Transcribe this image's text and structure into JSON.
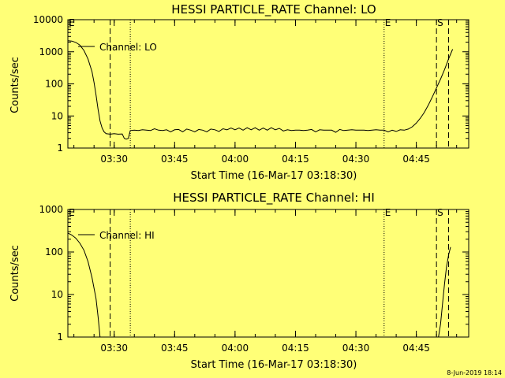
{
  "footer": {
    "timestamp": "8-Jun-2019 18:14"
  },
  "chart_data": [
    {
      "type": "line",
      "title": "HESSI PARTICLE_RATE Channel: LO",
      "xlabel": "Start Time (16-Mar-17 03:18:30)",
      "ylabel": "Counts/sec",
      "y_scale": "log",
      "xlim": [
        "03:18:30",
        "04:58:00"
      ],
      "ylim": [
        1,
        10000
      ],
      "x_ticks": [
        "03:30",
        "03:45",
        "04:00",
        "04:15",
        "04:30",
        "04:45"
      ],
      "y_ticks": [
        "1",
        "10",
        "100",
        "1000",
        "10000"
      ],
      "legend": {
        "label": "Channel: LO",
        "placement": "top-left"
      },
      "markers": [
        {
          "time": "03:18:30",
          "label": "E",
          "style": "dotted"
        },
        {
          "time": "03:29:00",
          "label": "",
          "style": "dashed"
        },
        {
          "time": "03:34:00",
          "label": "",
          "style": "dotted"
        },
        {
          "time": "04:37:00",
          "label": "E",
          "style": "dotted"
        },
        {
          "time": "04:50:00",
          "label": "S",
          "style": "dashed"
        },
        {
          "time": "04:53:00",
          "label": "",
          "style": "dashed"
        }
      ],
      "series": [
        {
          "name": "Channel: LO",
          "points": [
            [
              "03:18:30",
              2200
            ],
            [
              "03:19:30",
              2150
            ],
            [
              "03:20:30",
              1950
            ],
            [
              "03:21:30",
              1600
            ],
            [
              "03:22:30",
              1100
            ],
            [
              "03:23:30",
              600
            ],
            [
              "03:24:30",
              240
            ],
            [
              "03:25:00",
              110
            ],
            [
              "03:25:30",
              45
            ],
            [
              "03:26:00",
              16
            ],
            [
              "03:26:30",
              7
            ],
            [
              "03:27:00",
              4.2
            ],
            [
              "03:27:30",
              3.2
            ],
            [
              "03:28:00",
              2.8
            ],
            [
              "03:29:00",
              2.7
            ],
            [
              "03:30:00",
              2.8
            ],
            [
              "03:31:00",
              2.7
            ],
            [
              "03:32:00",
              2.75
            ],
            [
              "03:32:30",
              2.0
            ],
            [
              "03:33:00",
              1.9
            ],
            [
              "03:33:30",
              2.0
            ],
            [
              "03:34:00",
              3.5
            ],
            [
              "03:35:00",
              3.6
            ],
            [
              "03:36:00",
              3.5
            ],
            [
              "03:37:00",
              3.7
            ],
            [
              "03:38:00",
              3.6
            ],
            [
              "03:39:00",
              3.5
            ],
            [
              "03:40:00",
              4.0
            ],
            [
              "03:41:00",
              3.6
            ],
            [
              "03:42:00",
              3.5
            ],
            [
              "03:43:00",
              3.7
            ],
            [
              "03:44:00",
              3.2
            ],
            [
              "03:45:00",
              3.7
            ],
            [
              "03:46:00",
              3.8
            ],
            [
              "03:47:00",
              3.2
            ],
            [
              "03:48:00",
              3.9
            ],
            [
              "03:49:00",
              3.6
            ],
            [
              "03:50:00",
              3.2
            ],
            [
              "03:51:00",
              3.8
            ],
            [
              "03:52:00",
              3.6
            ],
            [
              "03:53:00",
              3.2
            ],
            [
              "03:54:00",
              3.9
            ],
            [
              "03:55:00",
              3.7
            ],
            [
              "03:56:00",
              3.3
            ],
            [
              "03:57:00",
              4.0
            ],
            [
              "03:58:00",
              3.7
            ],
            [
              "03:59:00",
              4.2
            ],
            [
              "04:00:00",
              3.7
            ],
            [
              "04:01:00",
              4.2
            ],
            [
              "04:02:00",
              3.6
            ],
            [
              "04:03:00",
              4.3
            ],
            [
              "04:04:00",
              3.7
            ],
            [
              "04:05:00",
              4.3
            ],
            [
              "04:06:00",
              3.6
            ],
            [
              "04:07:00",
              4.2
            ],
            [
              "04:08:00",
              3.6
            ],
            [
              "04:09:00",
              4.3
            ],
            [
              "04:10:00",
              3.7
            ],
            [
              "04:11:00",
              4.1
            ],
            [
              "04:12:00",
              3.4
            ],
            [
              "04:13:00",
              3.7
            ],
            [
              "04:14:00",
              3.5
            ],
            [
              "04:15:00",
              3.6
            ],
            [
              "04:16:00",
              3.6
            ],
            [
              "04:17:00",
              3.5
            ],
            [
              "04:18:00",
              3.6
            ],
            [
              "04:19:00",
              3.8
            ],
            [
              "04:20:00",
              3.2
            ],
            [
              "04:21:00",
              3.7
            ],
            [
              "04:22:00",
              3.6
            ],
            [
              "04:23:00",
              3.6
            ],
            [
              "04:24:00",
              3.6
            ],
            [
              "04:25:00",
              3.1
            ],
            [
              "04:26:00",
              3.8
            ],
            [
              "04:27:00",
              3.5
            ],
            [
              "04:28:00",
              3.6
            ],
            [
              "04:29:00",
              3.7
            ],
            [
              "04:30:00",
              3.6
            ],
            [
              "04:31:00",
              3.6
            ],
            [
              "04:32:00",
              3.6
            ],
            [
              "04:33:00",
              3.5
            ],
            [
              "04:34:00",
              3.6
            ],
            [
              "04:35:00",
              3.7
            ],
            [
              "04:36:00",
              3.6
            ],
            [
              "04:37:00",
              3.6
            ],
            [
              "04:38:00",
              3.2
            ],
            [
              "04:39:00",
              3.6
            ],
            [
              "04:40:00",
              3.3
            ],
            [
              "04:41:00",
              3.7
            ],
            [
              "04:42:00",
              3.6
            ],
            [
              "04:43:00",
              3.9
            ],
            [
              "04:44:00",
              4.6
            ],
            [
              "04:45:00",
              6.0
            ],
            [
              "04:46:00",
              8.5
            ],
            [
              "04:47:00",
              13
            ],
            [
              "04:48:00",
              22
            ],
            [
              "04:49:00",
              40
            ],
            [
              "04:50:00",
              75
            ],
            [
              "04:51:00",
              140
            ],
            [
              "04:52:00",
              280
            ],
            [
              "04:53:00",
              600
            ],
            [
              "04:54:00",
              1200
            ]
          ]
        }
      ]
    },
    {
      "type": "line",
      "title": "HESSI PARTICLE_RATE Channel: HI",
      "xlabel": "Start Time (16-Mar-17 03:18:30)",
      "ylabel": "Counts/sec",
      "y_scale": "log",
      "xlim": [
        "03:18:30",
        "04:58:00"
      ],
      "ylim": [
        1,
        1000
      ],
      "x_ticks": [
        "03:30",
        "03:45",
        "04:00",
        "04:15",
        "04:30",
        "04:45"
      ],
      "y_ticks": [
        "1",
        "10",
        "100",
        "1000"
      ],
      "legend": {
        "label": "Channel: HI",
        "placement": "top-left"
      },
      "markers": [
        {
          "time": "03:18:30",
          "label": "E",
          "style": "dotted"
        },
        {
          "time": "03:29:00",
          "label": "",
          "style": "dashed"
        },
        {
          "time": "03:34:00",
          "label": "",
          "style": "dotted"
        },
        {
          "time": "04:37:00",
          "label": "E",
          "style": "dotted"
        },
        {
          "time": "04:50:00",
          "label": "S",
          "style": "dashed"
        },
        {
          "time": "04:53:00",
          "label": "",
          "style": "dashed"
        }
      ],
      "series": [
        {
          "name": "Channel: HI",
          "points": [
            [
              "03:18:30",
              280
            ],
            [
              "03:19:30",
              250
            ],
            [
              "03:20:30",
              210
            ],
            [
              "03:21:30",
              160
            ],
            [
              "03:22:30",
              110
            ],
            [
              "03:23:30",
              60
            ],
            [
              "03:24:30",
              25
            ],
            [
              "03:25:30",
              8
            ],
            [
              "03:26:00",
              3
            ],
            [
              "03:26:30",
              1
            ]
          ]
        },
        {
          "name": "Channel: HI",
          "points": [
            [
              "04:50:30",
              1
            ],
            [
              "04:51:00",
              2
            ],
            [
              "04:51:30",
              6
            ],
            [
              "04:52:00",
              18
            ],
            [
              "04:52:30",
              45
            ],
            [
              "04:53:00",
              85
            ],
            [
              "04:53:30",
              130
            ]
          ]
        }
      ]
    }
  ]
}
